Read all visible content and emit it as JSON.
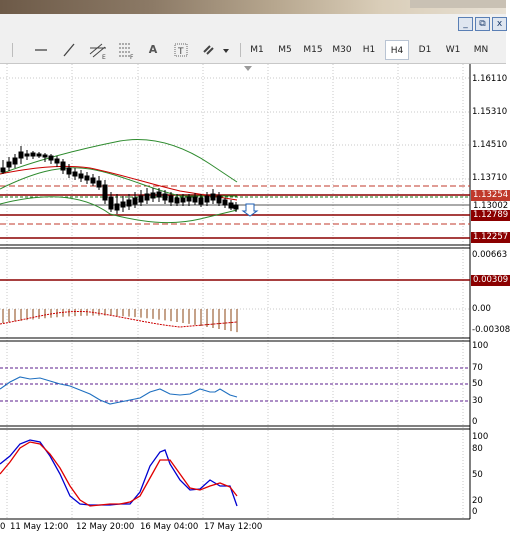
{
  "window": {
    "minimize_label": "_",
    "restore_label": "⧉",
    "close_label": "x"
  },
  "toolbar": {
    "tools": [
      "cursor",
      "horizontal-line",
      "trendline",
      "channel",
      "fibonacci",
      "text",
      "label",
      "shapes"
    ],
    "text_tool": "A",
    "label_tool": "T",
    "timeframes": [
      "M1",
      "M5",
      "M15",
      "M30",
      "H1",
      "H4",
      "D1",
      "W1",
      "MN"
    ],
    "active_timeframe": "H4"
  },
  "main_chart": {
    "price_scale": [
      "1.16110",
      "1.15310",
      "1.14510",
      "1.13710",
      "1.13254",
      "1.13002",
      "1.12789",
      "1.12257"
    ],
    "price_scale_visible": {
      "p1": "1.16110",
      "p2": "1.15310",
      "p3": "1.14510",
      "p4": "1.13710"
    },
    "tags": {
      "upper": "1.13254",
      "current": "1.13002",
      "lower": "1.12789",
      "bottom": "1.12257"
    }
  },
  "macd": {
    "scale": {
      "top": "0.00663",
      "level": "0.00309",
      "zero": "0.00",
      "bottom": "-0.00308"
    },
    "level_tag": "0.00309"
  },
  "rsi": {
    "scale": [
      "100",
      "70",
      "50",
      "30",
      "0"
    ]
  },
  "stoch": {
    "scale": [
      "100",
      "80",
      "50",
      "20",
      "0"
    ]
  },
  "time_axis": [
    "0",
    "11 May 12:00",
    "12 May 20:00",
    "16 May 04:00",
    "17 May 12:00"
  ],
  "colors": {
    "candle": "#000000",
    "bollinger": "#2e8b2e",
    "ma_red": "#cc0000",
    "level_line": "#8b0000",
    "rsi_line": "#1e6fc0",
    "dotted_level": "#5b1e8c",
    "stoch_main": "#0000d0",
    "stoch_signal": "#e00000",
    "tag_bg_dark": "#8b0000",
    "tag_bg_red": "#c0392b"
  }
}
